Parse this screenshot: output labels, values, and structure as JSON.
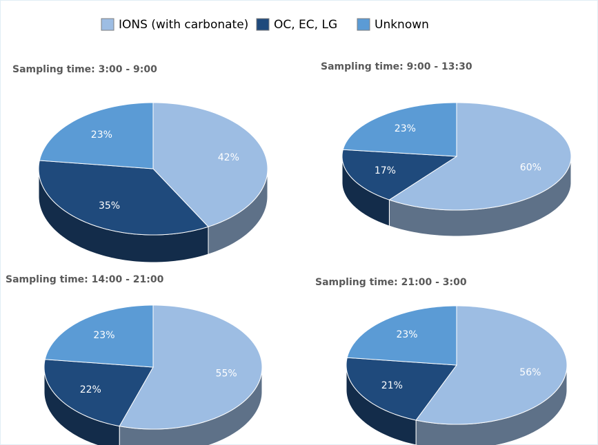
{
  "legend": [
    {
      "name": "IONS (with carbonate)",
      "color": "#9dbde3"
    },
    {
      "name": "OC, EC, LG",
      "color": "#1f4a7c"
    },
    {
      "name": "Unknown",
      "color": "#5b9bd5"
    }
  ],
  "chart_data": [
    {
      "type": "pie",
      "title": "Sampling time: 3:00 - 9:00",
      "values": [
        42,
        35,
        23
      ],
      "value_labels": [
        "42%",
        "35%",
        "23%"
      ]
    },
    {
      "type": "pie",
      "title": "Sampling time: 9:00 - 13:30",
      "values": [
        60,
        17,
        23
      ],
      "value_labels": [
        "60%",
        "17%",
        "23%"
      ]
    },
    {
      "type": "pie",
      "title": "Sampling time: 14:00 - 21:00",
      "values": [
        55,
        22,
        23
      ],
      "value_labels": [
        "55%",
        "22%",
        "23%"
      ]
    },
    {
      "type": "pie",
      "title": "Sampling time: 21:00 - 3:00",
      "values": [
        56,
        21,
        23
      ],
      "value_labels": [
        "56%",
        "21%",
        "23%"
      ]
    }
  ]
}
